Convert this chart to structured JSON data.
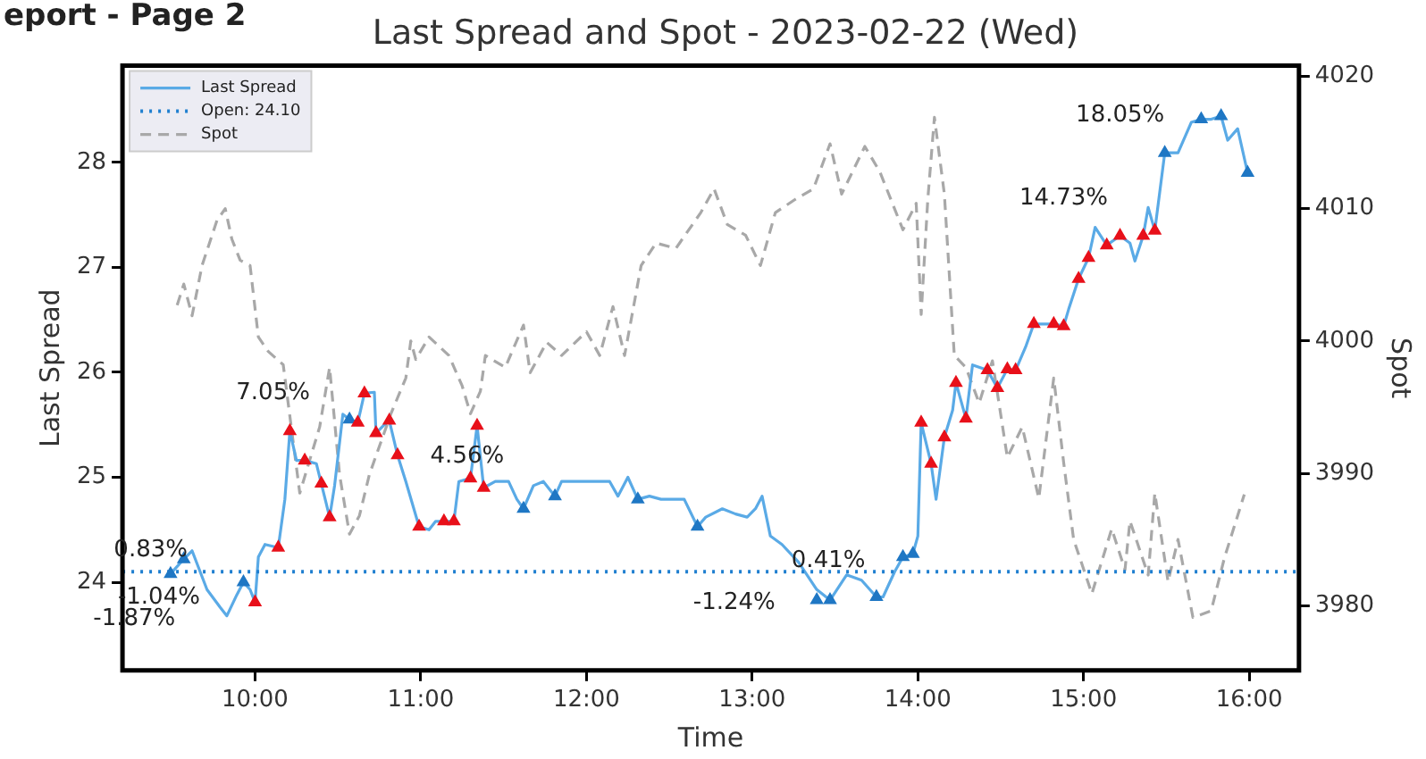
{
  "chart_data": {
    "type": "line",
    "title": "Last Spread and Spot - 2023-02-22 (Wed)",
    "xlabel": "Time",
    "ylabel": "Last Spread",
    "y2label": "Spot",
    "xlim": [
      9.2,
      16.3
    ],
    "xticks": [
      {
        "value": 10,
        "label": "10:00"
      },
      {
        "value": 11,
        "label": "11:00"
      },
      {
        "value": 12,
        "label": "12:00"
      },
      {
        "value": 13,
        "label": "13:00"
      },
      {
        "value": 14,
        "label": "14:00"
      },
      {
        "value": 15,
        "label": "15:00"
      },
      {
        "value": 16,
        "label": "16:00"
      }
    ],
    "ylim": [
      23.16,
      28.92
    ],
    "yticks": [
      24,
      25,
      26,
      27,
      28
    ],
    "y2lim": [
      3975.1,
      4020.8
    ],
    "y2ticks": [
      3980,
      3990,
      4000,
      4010,
      4020
    ],
    "grid": false,
    "legend": "top left",
    "series": [
      {
        "name": "Last Spread",
        "type": "line",
        "color": "#5aaae6",
        "x": [
          9.49,
          9.57,
          9.62,
          9.71,
          9.79,
          9.83,
          9.89,
          9.93,
          9.97,
          10.0,
          10.02,
          10.06,
          10.14,
          10.18,
          10.21,
          10.25,
          10.3,
          10.37,
          10.4,
          10.45,
          10.48,
          10.53,
          10.57,
          10.62,
          10.66,
          10.72,
          10.73,
          10.78,
          10.81,
          10.86,
          10.91,
          10.99,
          11.05,
          11.09,
          11.14,
          11.2,
          11.23,
          11.3,
          11.34,
          11.38,
          11.45,
          11.53,
          11.58,
          11.62,
          11.68,
          11.74,
          11.81,
          11.85,
          11.91,
          12.02,
          12.14,
          12.19,
          12.25,
          12.31,
          12.38,
          12.45,
          12.54,
          12.59,
          12.67,
          12.72,
          12.82,
          12.9,
          12.97,
          13.02,
          13.06,
          13.11,
          13.18,
          13.28,
          13.39,
          13.47,
          13.57,
          13.66,
          13.75,
          13.79,
          13.86,
          13.91,
          13.97,
          14.0,
          14.02,
          14.08,
          14.11,
          14.16,
          14.21,
          14.23,
          14.29,
          14.33,
          14.42,
          14.48,
          14.54,
          14.59,
          14.65,
          14.7,
          14.82,
          14.88,
          14.91,
          14.97,
          15.03,
          15.07,
          15.14,
          15.22,
          15.28,
          15.31,
          15.36,
          15.39,
          15.43,
          15.49,
          15.57,
          15.65,
          15.71,
          15.77,
          15.83,
          15.87,
          15.93,
          15.99
        ],
        "values": [
          24.08,
          24.22,
          24.3,
          23.93,
          23.76,
          23.68,
          23.88,
          24.0,
          23.93,
          23.81,
          24.24,
          24.36,
          24.33,
          24.79,
          25.44,
          25.16,
          25.16,
          25.13,
          24.94,
          24.62,
          24.92,
          25.6,
          25.55,
          25.52,
          25.8,
          25.81,
          25.42,
          25.5,
          25.54,
          25.21,
          24.96,
          24.53,
          24.5,
          24.58,
          24.58,
          24.58,
          24.96,
          24.99,
          25.49,
          24.9,
          24.96,
          24.96,
          24.79,
          24.7,
          24.92,
          24.96,
          24.82,
          24.96,
          24.96,
          24.96,
          24.96,
          24.82,
          25.0,
          24.79,
          24.82,
          24.79,
          24.79,
          24.79,
          24.53,
          24.62,
          24.7,
          24.65,
          24.62,
          24.7,
          24.82,
          24.44,
          24.36,
          24.19,
          23.93,
          23.83,
          24.07,
          24.02,
          23.86,
          23.86,
          24.1,
          24.24,
          24.27,
          24.44,
          25.52,
          25.13,
          24.79,
          25.38,
          25.64,
          25.9,
          25.56,
          26.07,
          26.02,
          25.85,
          26.03,
          26.02,
          26.24,
          26.46,
          26.46,
          26.44,
          26.6,
          26.89,
          27.09,
          27.38,
          27.21,
          27.3,
          27.23,
          27.06,
          27.3,
          27.57,
          27.35,
          28.09,
          28.09,
          28.38,
          28.41,
          28.41,
          28.44,
          28.21,
          28.32,
          27.9
        ]
      },
      {
        "name": "Spot",
        "type": "line",
        "axis": "y2",
        "color": "#a8a8a8",
        "line_style": "dashed",
        "x": [
          9.53,
          9.57,
          9.62,
          9.68,
          9.77,
          9.82,
          9.86,
          9.91,
          9.97,
          10.02,
          10.08,
          10.17,
          10.27,
          10.39,
          10.45,
          10.51,
          10.57,
          10.63,
          10.69,
          10.82,
          10.91,
          10.94,
          10.97,
          11.05,
          11.17,
          11.25,
          11.3,
          11.36,
          11.39,
          11.51,
          11.62,
          11.66,
          11.76,
          11.85,
          12.0,
          12.08,
          12.16,
          12.23,
          12.33,
          12.42,
          12.54,
          12.69,
          12.77,
          12.85,
          12.96,
          13.05,
          13.14,
          13.26,
          13.37,
          13.47,
          13.54,
          13.68,
          13.77,
          13.91,
          13.99,
          14.02,
          14.06,
          14.1,
          14.16,
          14.22,
          14.29,
          14.37,
          14.45,
          14.54,
          14.63,
          14.73,
          14.82,
          14.88,
          14.94,
          15.05,
          15.17,
          15.25,
          15.28,
          15.39,
          15.43,
          15.51,
          15.57,
          15.66,
          15.77,
          15.85,
          15.97
        ],
        "values": [
          4002.7,
          4004.3,
          4001.9,
          4005.7,
          4009.1,
          4010.0,
          4007.7,
          4006.1,
          4005.7,
          4000.3,
          3999.2,
          3998.2,
          3988.5,
          3993.5,
          3998.0,
          3989.9,
          3985.4,
          3986.8,
          3989.9,
          3994.5,
          3997.2,
          4000.0,
          3998.6,
          4000.3,
          3998.9,
          3996.6,
          3994.5,
          3996.2,
          3998.9,
          3998.0,
          4001.2,
          3997.6,
          3999.9,
          3998.9,
          4000.7,
          3998.9,
          4002.6,
          3998.9,
          4005.7,
          4007.4,
          4007.0,
          4009.7,
          4011.5,
          4008.8,
          4008.0,
          4005.7,
          4009.7,
          4010.7,
          4011.5,
          4014.9,
          4011.1,
          4014.7,
          4012.8,
          4008.4,
          4010.4,
          4002.0,
          4010.7,
          4016.9,
          4011.1,
          3998.9,
          3998.0,
          3995.3,
          3998.5,
          3991.2,
          3993.5,
          3988.1,
          3997.2,
          3990.8,
          3985.0,
          3980.9,
          3985.8,
          3982.7,
          3986.4,
          3982.3,
          3988.5,
          3981.8,
          3985.0,
          3979.1,
          3979.6,
          3983.6,
          3988.4
        ]
      },
      {
        "type": "scatter",
        "marker": "triangle",
        "color": "#e8101a",
        "x": [
          10.0,
          10.14,
          10.21,
          10.3,
          10.4,
          10.45,
          10.62,
          10.66,
          10.73,
          10.81,
          10.86,
          10.99,
          11.14,
          11.2,
          11.3,
          11.34,
          11.38,
          14.02,
          14.08,
          14.16,
          14.23,
          14.29,
          14.42,
          14.48,
          14.54,
          14.59,
          14.7,
          14.82,
          14.88,
          14.97,
          15.03,
          15.14,
          15.22,
          15.36,
          15.43
        ],
        "values": [
          23.81,
          24.33,
          25.44,
          25.16,
          24.94,
          24.62,
          25.52,
          25.8,
          25.42,
          25.54,
          25.21,
          24.53,
          24.58,
          24.58,
          24.99,
          25.49,
          24.9,
          25.52,
          25.13,
          25.38,
          25.9,
          25.56,
          26.02,
          25.85,
          26.03,
          26.02,
          26.46,
          26.46,
          26.44,
          26.89,
          27.09,
          27.21,
          27.3,
          27.3,
          27.35
        ]
      },
      {
        "type": "scatter",
        "marker": "triangle",
        "color": "#1f77c4",
        "x": [
          9.49,
          9.57,
          9.93,
          10.57,
          11.62,
          11.81,
          12.31,
          12.67,
          13.39,
          13.47,
          13.75,
          13.91,
          13.97,
          15.49,
          15.71,
          15.83,
          15.99
        ],
        "values": [
          24.08,
          24.22,
          24.0,
          25.55,
          24.7,
          24.82,
          24.79,
          24.53,
          23.83,
          23.83,
          23.86,
          24.24,
          24.27,
          28.09,
          28.41,
          28.44,
          27.9
        ]
      }
    ],
    "ref_lines": [
      {
        "axis": "y",
        "value": 24.1,
        "label": "Open: 24.10",
        "color": "#1f7fd0",
        "line_style": "dotted"
      }
    ],
    "annotations": [
      "eport - Page 2",
      "0.83%",
      "-1.04%",
      "-1.87%",
      "7.05%",
      "4.56%",
      "-1.24%",
      "0.41%",
      "14.73%",
      "18.05%"
    ]
  }
}
